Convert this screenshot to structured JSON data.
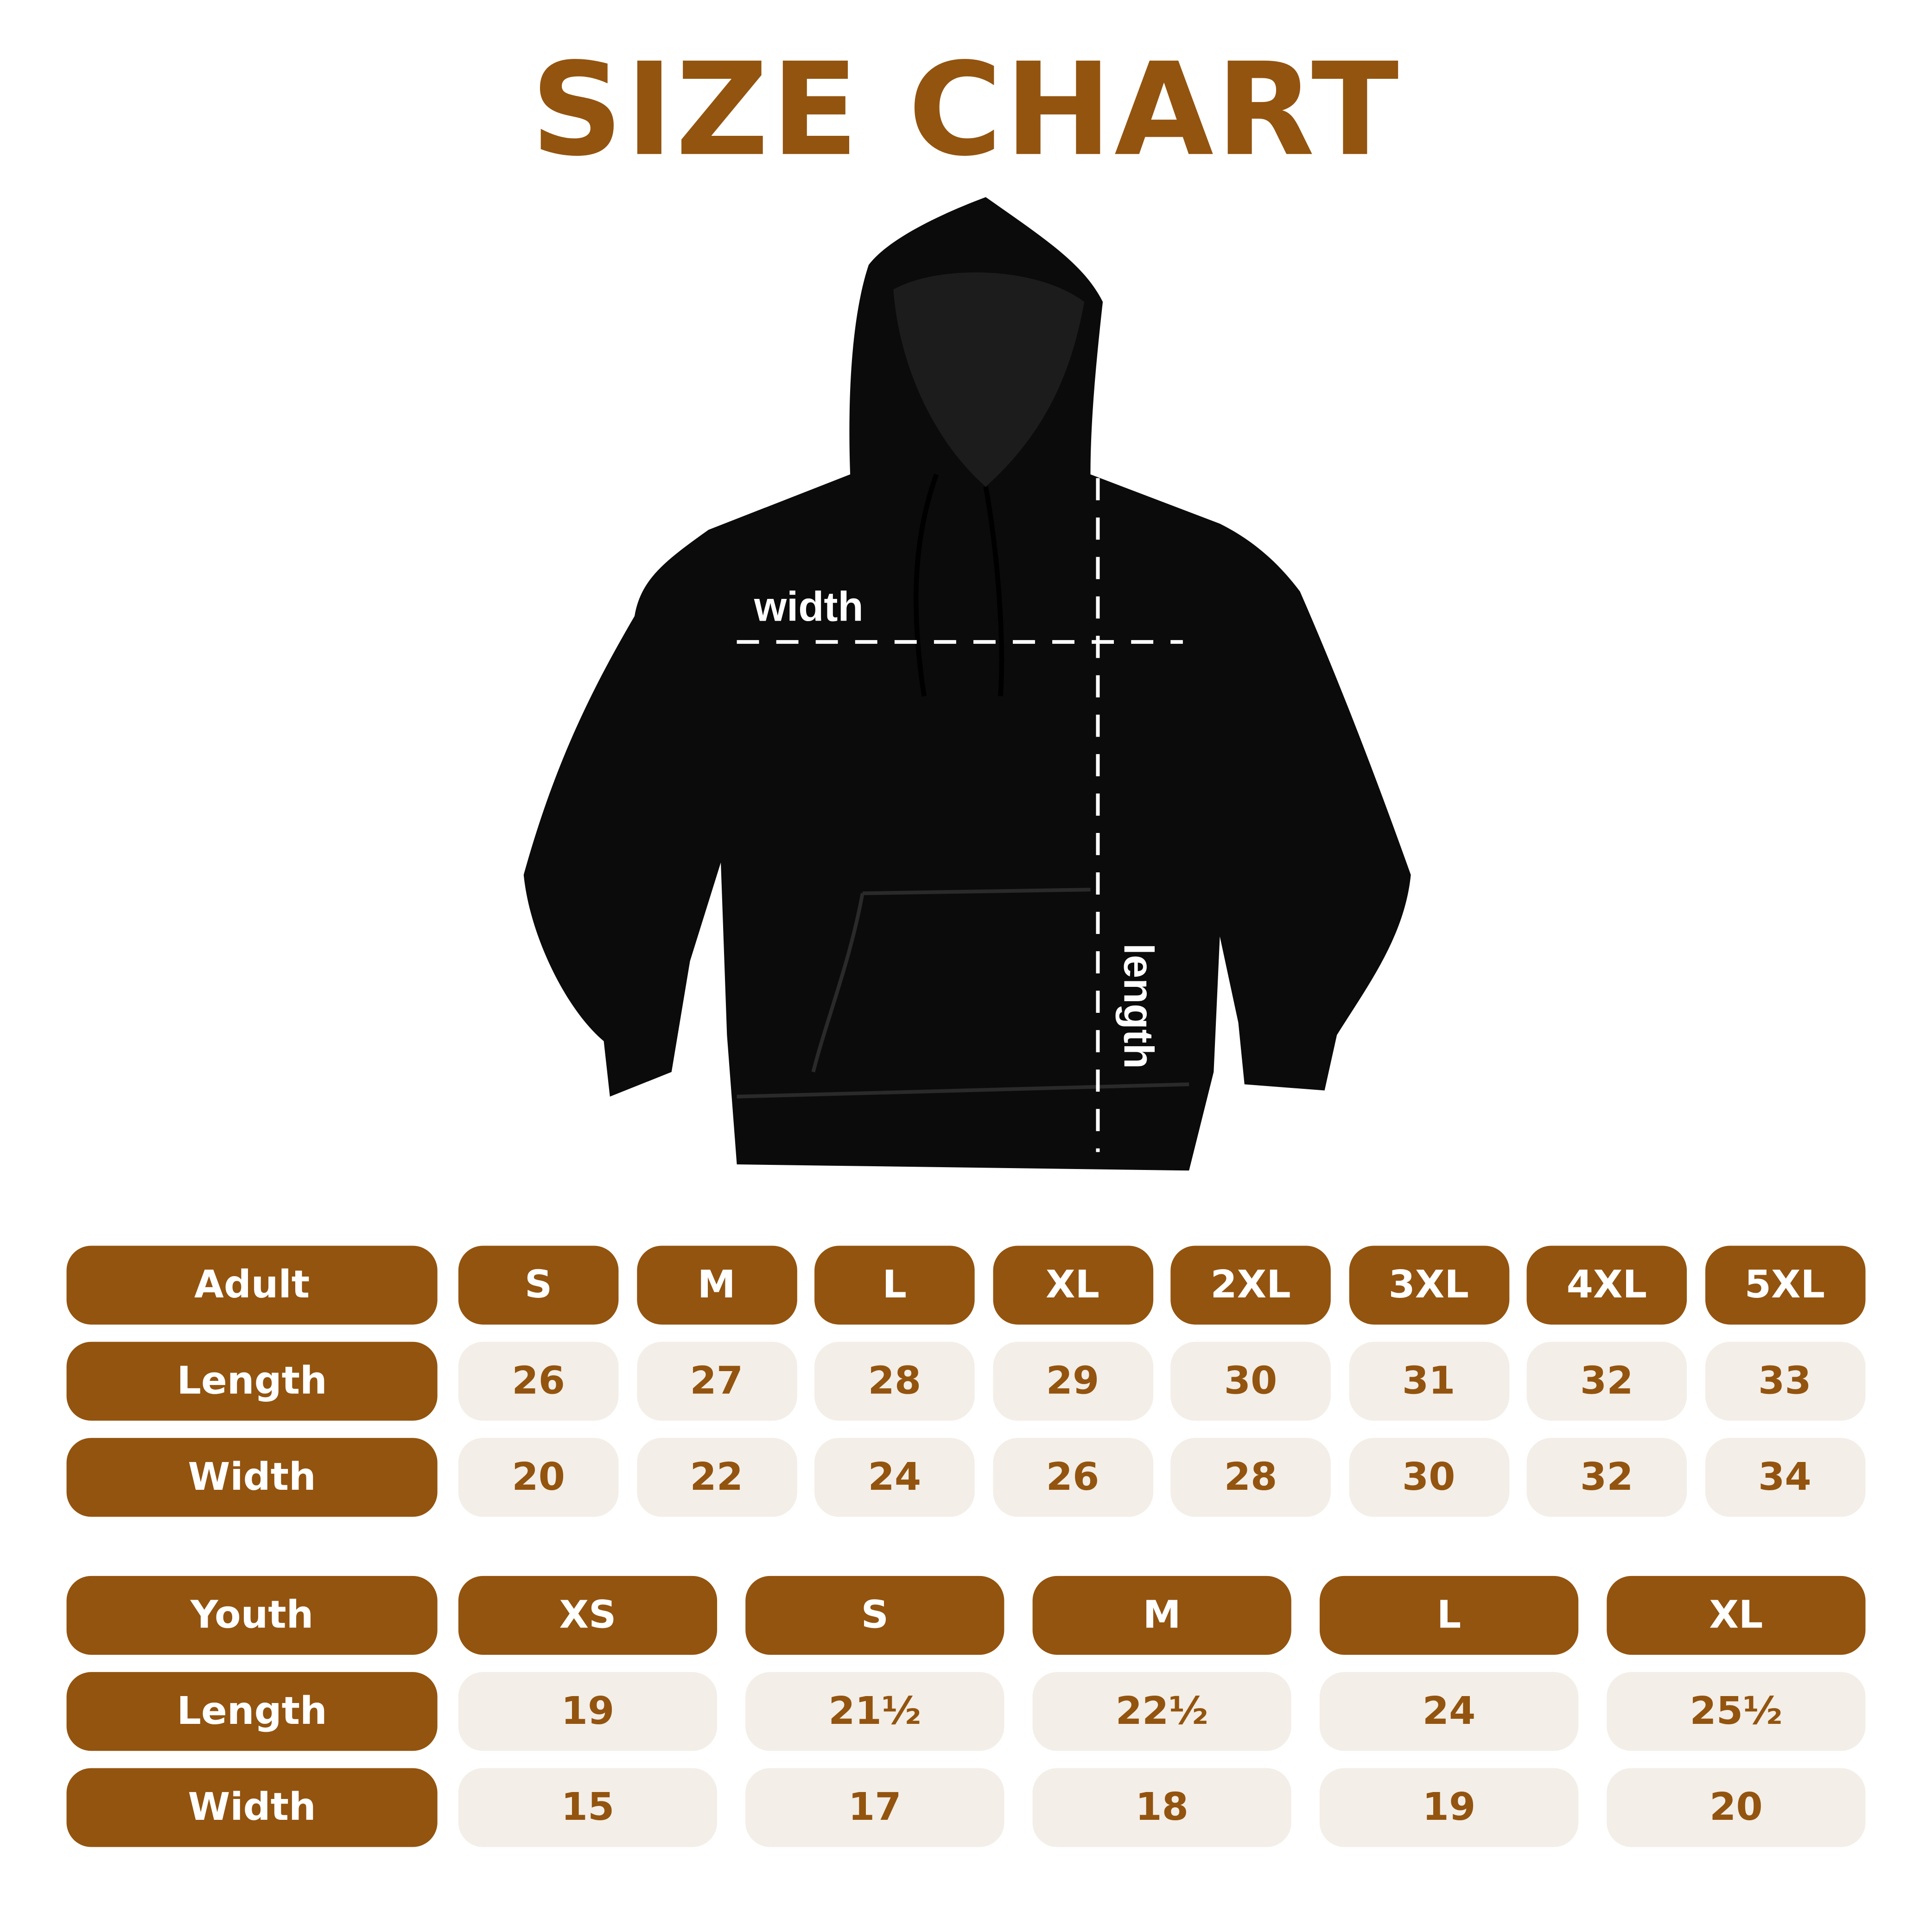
{
  "title": "SIZE CHART",
  "diagram": {
    "width_label": "width",
    "length_label": "length"
  },
  "colors": {
    "brand": "#93540f",
    "cell_bg": "#f3eee7",
    "garment": "#0b0b0b"
  },
  "adult": {
    "header": "Adult",
    "sizes": [
      "S",
      "M",
      "L",
      "XL",
      "2XL",
      "3XL",
      "4XL",
      "5XL"
    ],
    "rows": [
      {
        "label": "Length",
        "values": [
          "26",
          "27",
          "28",
          "29",
          "30",
          "31",
          "32",
          "33"
        ]
      },
      {
        "label": "Width",
        "values": [
          "20",
          "22",
          "24",
          "26",
          "28",
          "30",
          "32",
          "34"
        ]
      }
    ]
  },
  "youth": {
    "header": "Youth",
    "sizes": [
      "XS",
      "S",
      "M",
      "L",
      "XL"
    ],
    "rows": [
      {
        "label": "Length",
        "values": [
          "19",
          "21½",
          "22½",
          "24",
          "25½"
        ]
      },
      {
        "label": "Width",
        "values": [
          "15",
          "17",
          "18",
          "19",
          "20"
        ]
      }
    ]
  }
}
